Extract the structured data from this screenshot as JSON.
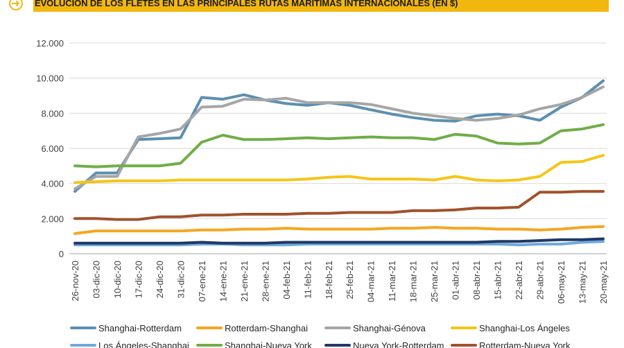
{
  "header": {
    "title": "EVOLUCIÓN DE LOS FLETES EN LAS PRINCIPALES RUTAS MARÍTIMAS INTERNACIONALES (EN $)"
  },
  "chart_data": {
    "type": "line",
    "title": "EVOLUCIÓN DE LOS FLETES EN LAS PRINCIPALES RUTAS MARÍTIMAS INTERNACIONALES (EN $)",
    "xlabel": "",
    "ylabel": "",
    "ylim": [
      0,
      12000
    ],
    "yticks": [
      0,
      2000,
      4000,
      6000,
      8000,
      10000,
      12000
    ],
    "ytick_labels": [
      "0",
      "2.000",
      "4.000",
      "6.000",
      "8.000",
      "10.000",
      "12.000"
    ],
    "grid": "horizontal",
    "legend_position": "bottom",
    "categories": [
      "26-nov-20",
      "03-dic-20",
      "10-dic-20",
      "17-dic-20",
      "24-dic-20",
      "31-dic-20",
      "07-ene-21",
      "14-ene-21",
      "21-ene-21",
      "28-ene-21",
      "04-feb-21",
      "11-feb-21",
      "18-feb-21",
      "25-feb-21",
      "04-mar-21",
      "11-mar-21",
      "18-mar-21",
      "25-mar-21",
      "01-abr-21",
      "08-abr-21",
      "15-abr-21",
      "22-abr-21",
      "29-abr-21",
      "06-may-21",
      "13-may-21",
      "20-may-21"
    ],
    "series": [
      {
        "name": "Shanghai-Rotterdam",
        "color": "#5b8fb0",
        "values": [
          3550,
          4600,
          4600,
          6500,
          6550,
          6600,
          8900,
          8800,
          9050,
          8750,
          8550,
          8450,
          8600,
          8450,
          8200,
          7950,
          7750,
          7600,
          7550,
          7850,
          7950,
          7850,
          7600,
          8350,
          8900,
          9850
        ]
      },
      {
        "name": "Rotterdam-Shanghai",
        "color": "#f5a623",
        "values": [
          1150,
          1300,
          1300,
          1300,
          1300,
          1300,
          1350,
          1350,
          1400,
          1400,
          1450,
          1400,
          1400,
          1400,
          1400,
          1450,
          1450,
          1500,
          1450,
          1450,
          1400,
          1400,
          1350,
          1400,
          1500,
          1550
        ]
      },
      {
        "name": "Shanghai-Génova",
        "color": "#a6a6a6",
        "values": [
          3700,
          4400,
          4400,
          6650,
          6850,
          7100,
          8350,
          8400,
          8800,
          8750,
          8850,
          8600,
          8600,
          8600,
          8500,
          8250,
          8000,
          7850,
          7700,
          7600,
          7700,
          7900,
          8250,
          8500,
          8900,
          9500
        ]
      },
      {
        "name": "Shanghai-Los Ángeles",
        "color": "#f5c518",
        "values": [
          4050,
          4100,
          4150,
          4150,
          4150,
          4200,
          4200,
          4200,
          4200,
          4200,
          4200,
          4250,
          4350,
          4400,
          4250,
          4250,
          4250,
          4200,
          4400,
          4200,
          4150,
          4200,
          4400,
          5200,
          5250,
          5600
        ]
      },
      {
        "name": "Los Ángeles-Shanghai",
        "color": "#6fa8dc",
        "values": [
          500,
          500,
          500,
          500,
          500,
          500,
          550,
          550,
          500,
          500,
          500,
          550,
          550,
          550,
          550,
          550,
          550,
          550,
          550,
          550,
          550,
          500,
          550,
          550,
          650,
          700
        ]
      },
      {
        "name": "Shanghai-Nueva York",
        "color": "#70ad47",
        "values": [
          5000,
          4950,
          5000,
          5000,
          5000,
          5150,
          6350,
          6750,
          6500,
          6500,
          6550,
          6600,
          6550,
          6600,
          6650,
          6600,
          6600,
          6500,
          6800,
          6700,
          6300,
          6250,
          6300,
          7000,
          7100,
          7350
        ]
      },
      {
        "name": "Nueva York-Rotterdam",
        "color": "#203864",
        "values": [
          600,
          600,
          600,
          600,
          600,
          600,
          650,
          600,
          600,
          600,
          650,
          650,
          650,
          650,
          650,
          650,
          650,
          650,
          650,
          650,
          700,
          700,
          750,
          800,
          800,
          850
        ]
      },
      {
        "name": "Rotterdam-Nueva York",
        "color": "#a0522d",
        "values": [
          2000,
          2000,
          1950,
          1950,
          2100,
          2100,
          2200,
          2200,
          2250,
          2250,
          2250,
          2300,
          2300,
          2350,
          2350,
          2350,
          2450,
          2450,
          2500,
          2600,
          2600,
          2650,
          3500,
          3500,
          3550,
          3550
        ]
      }
    ]
  }
}
